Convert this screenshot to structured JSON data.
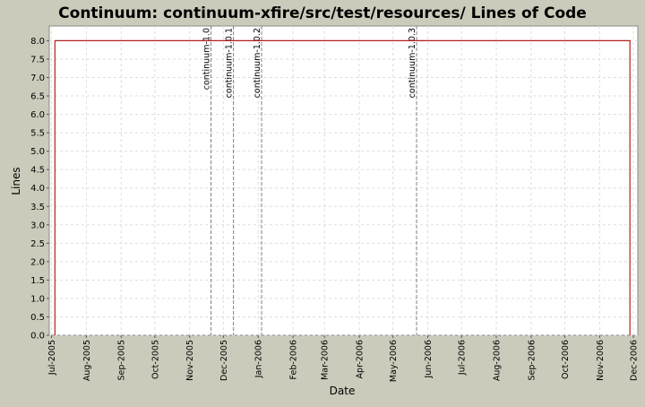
{
  "chart_data": {
    "type": "line",
    "title": "Continuum: continuum-xfire/src/test/resources/ Lines of Code",
    "xlabel": "Date",
    "ylabel": "Lines",
    "x_type": "date",
    "x_range": [
      "2005-06-29",
      "2006-12-05"
    ],
    "xticks": [
      "2005-07-01",
      "2005-08-01",
      "2005-09-01",
      "2005-10-01",
      "2005-11-01",
      "2005-12-01",
      "2006-01-01",
      "2006-02-01",
      "2006-03-01",
      "2006-04-01",
      "2006-05-01",
      "2006-06-01",
      "2006-07-01",
      "2006-08-01",
      "2006-09-01",
      "2006-10-01",
      "2006-11-01",
      "2006-12-01"
    ],
    "xtick_labels": [
      "Jul-2005",
      "Aug-2005",
      "Sep-2005",
      "Oct-2005",
      "Nov-2005",
      "Dec-2005",
      "Jan-2006",
      "Feb-2006",
      "Mar-2006",
      "Apr-2006",
      "May-2006",
      "Jun-2006",
      "Jul-2006",
      "Aug-2006",
      "Sep-2006",
      "Oct-2006",
      "Nov-2006",
      "Dec-2006"
    ],
    "ylim": [
      0,
      8.4
    ],
    "yticks": [
      0.0,
      0.5,
      1.0,
      1.5,
      2.0,
      2.5,
      3.0,
      3.5,
      4.0,
      4.5,
      5.0,
      5.5,
      6.0,
      6.5,
      7.0,
      7.5,
      8.0
    ],
    "ytick_labels": [
      "0.0",
      "0.5",
      "1.0",
      "1.5",
      "2.0",
      "2.5",
      "3.0",
      "3.5",
      "4.0",
      "4.5",
      "5.0",
      "5.5",
      "6.0",
      "6.5",
      "7.0",
      "7.5",
      "8.0"
    ],
    "grid": true,
    "series": [
      {
        "color": "#b02020",
        "points": [
          {
            "x": "2005-07-04",
            "y": 0
          },
          {
            "x": "2005-07-04",
            "y": 8
          },
          {
            "x": "2006-11-28",
            "y": 8
          },
          {
            "x": "2006-11-28",
            "y": 0
          }
        ]
      }
    ],
    "markers": [
      {
        "x": "2005-11-20",
        "label": "continuum-1.0"
      },
      {
        "x": "2005-12-10",
        "label": "continuum-1.0.1"
      },
      {
        "x": "2006-01-04",
        "label": "continuum-1.0.2"
      },
      {
        "x": "2006-05-22",
        "label": "continuum-1.0.3"
      }
    ]
  },
  "colors": {
    "background": "#cccbbb",
    "plot_background": "#ffffff",
    "grid": "#dddddd",
    "marker_line": "#808080",
    "series": "#b02020"
  }
}
